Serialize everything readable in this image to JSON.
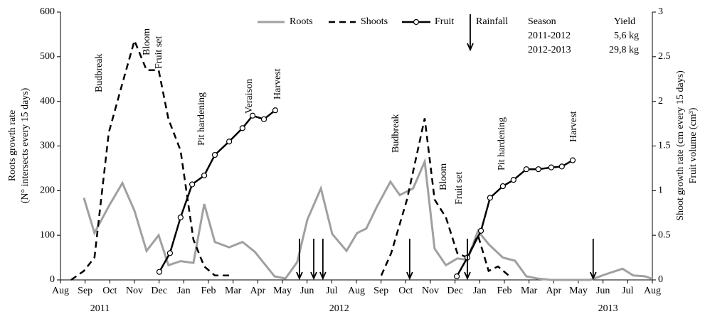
{
  "chart_data": {
    "type": "line",
    "x_axis_label_years": [
      "2011",
      "2012",
      "2013"
    ],
    "y_label": [
      "Roots growth rate",
      "(N° intersects  every 15 days)"
    ],
    "y2_label": [
      "Shoot growth rate (cm every 15 days)",
      "Fruit volume (cm³)"
    ],
    "xlim": [
      0,
      24
    ],
    "xticks": [
      {
        "value": 0,
        "label": "Aug"
      },
      {
        "value": 1,
        "label": "Sep"
      },
      {
        "value": 2,
        "label": "Oct"
      },
      {
        "value": 3,
        "label": "Nov"
      },
      {
        "value": 4,
        "label": "Dec"
      },
      {
        "value": 5,
        "label": "Jan"
      },
      {
        "value": 6,
        "label": "Feb"
      },
      {
        "value": 7,
        "label": "Mar"
      },
      {
        "value": 8,
        "label": "Apr"
      },
      {
        "value": 9,
        "label": "May"
      },
      {
        "value": 10,
        "label": "Jun"
      },
      {
        "value": 11,
        "label": "Jul"
      },
      {
        "value": 12,
        "label": "Aug"
      },
      {
        "value": 13,
        "label": "Sep"
      },
      {
        "value": 14,
        "label": "Oct"
      },
      {
        "value": 15,
        "label": "Nov"
      },
      {
        "value": 16,
        "label": "Dec"
      },
      {
        "value": 17,
        "label": "Jan"
      },
      {
        "value": 18,
        "label": "Feb"
      },
      {
        "value": 19,
        "label": "Mar"
      },
      {
        "value": 20,
        "label": "Apr"
      },
      {
        "value": 21,
        "label": "May"
      },
      {
        "value": 22,
        "label": "Jun"
      },
      {
        "value": 23,
        "label": "Jul"
      },
      {
        "value": 24,
        "label": "Aug"
      }
    ],
    "ylim": [
      0,
      600
    ],
    "yticks": [
      0,
      100,
      200,
      300,
      400,
      500,
      600
    ],
    "y2lim": [
      0,
      3
    ],
    "y2ticks": [
      0,
      0.5,
      1,
      1.5,
      2,
      2.5,
      3
    ],
    "series": [
      {
        "name": "Roots",
        "color": "#a0a0a0",
        "style": "solid",
        "axis": "y",
        "x": [
          0.95,
          1.38,
          1.96,
          2.51,
          3.0,
          3.49,
          3.98,
          4.38,
          4.87,
          5.39,
          5.83,
          6.26,
          6.84,
          7.38,
          7.88,
          8.68,
          9.12,
          9.6,
          10.01,
          10.56,
          11.02,
          11.6,
          12.03,
          12.4,
          12.84,
          13.38,
          13.76,
          14.3,
          14.77,
          15.17,
          15.63,
          16.09,
          16.5,
          16.93,
          17.36,
          17.94,
          18.43,
          18.89,
          19.35,
          19.9,
          21.49,
          22.07,
          22.79,
          23.22,
          23.71,
          24.0
        ],
        "values": [
          184,
          105,
          165,
          217,
          155,
          65,
          100,
          33,
          42,
          38,
          170,
          85,
          73,
          85,
          63,
          8,
          3,
          40,
          135,
          205,
          103,
          65,
          105,
          115,
          165,
          220,
          190,
          205,
          265,
          70,
          33,
          48,
          45,
          110,
          80,
          50,
          43,
          8,
          3,
          0,
          0,
          12,
          25,
          10,
          8,
          2
        ]
      },
      {
        "name": "Shoots",
        "color": "#000000",
        "style": "dashed",
        "axis": "y2",
        "x": [
          0.43,
          0.95,
          1.38,
          1.96,
          2.51,
          3.0,
          3.49,
          3.98,
          4.38,
          4.87,
          5.39,
          5.83,
          6.26,
          6.84,
          null,
          13.01,
          13.41,
          14.05,
          14.77,
          15.17,
          15.63,
          16.09,
          16.5,
          16.93,
          17.36,
          17.74,
          18.26
        ],
        "values": [
          0,
          0.1,
          0.25,
          1.65,
          2.2,
          2.68,
          2.35,
          2.35,
          1.8,
          1.45,
          0.45,
          0.15,
          0.05,
          0.05,
          null,
          0.05,
          0.3,
          0.9,
          1.81,
          0.9,
          0.7,
          0.3,
          0.25,
          0.5,
          0.1,
          0.15,
          0.03
        ]
      },
      {
        "name": "Fruit",
        "color": "#000000",
        "style": "solid-marker",
        "axis": "y2",
        "x": [
          4.01,
          4.44,
          4.87,
          5.34,
          5.83,
          6.26,
          6.84,
          7.38,
          7.79,
          8.25,
          8.71,
          null,
          16.07,
          16.5,
          17.05,
          17.42,
          17.94,
          18.37,
          18.89,
          19.38,
          19.9,
          20.33,
          20.77
        ],
        "values": [
          0.09,
          0.3,
          0.7,
          1.07,
          1.17,
          1.4,
          1.55,
          1.7,
          1.84,
          1.8,
          1.9,
          null,
          0.04,
          0.25,
          0.55,
          0.92,
          1.05,
          1.12,
          1.24,
          1.24,
          1.26,
          1.27,
          1.34
        ]
      }
    ],
    "rainfall": {
      "name": "Rainfall",
      "x": [
        9.69,
        10.27,
        10.64,
        14.16,
        16.5,
        21.6
      ]
    },
    "annotations": [
      "Budbreak",
      "Bloom",
      "Fruit set",
      "Pit hardening",
      "Veraison",
      "Harvest",
      "Budbreak",
      "Bloom",
      "Fruit set",
      "Pit hardening",
      "Harvest"
    ],
    "yield_table": {
      "headers": [
        "Season",
        "Yield"
      ],
      "rows": [
        [
          "2011-2012",
          "5,6 kg"
        ],
        [
          "2012-2013",
          "29,8 kg"
        ]
      ]
    }
  }
}
